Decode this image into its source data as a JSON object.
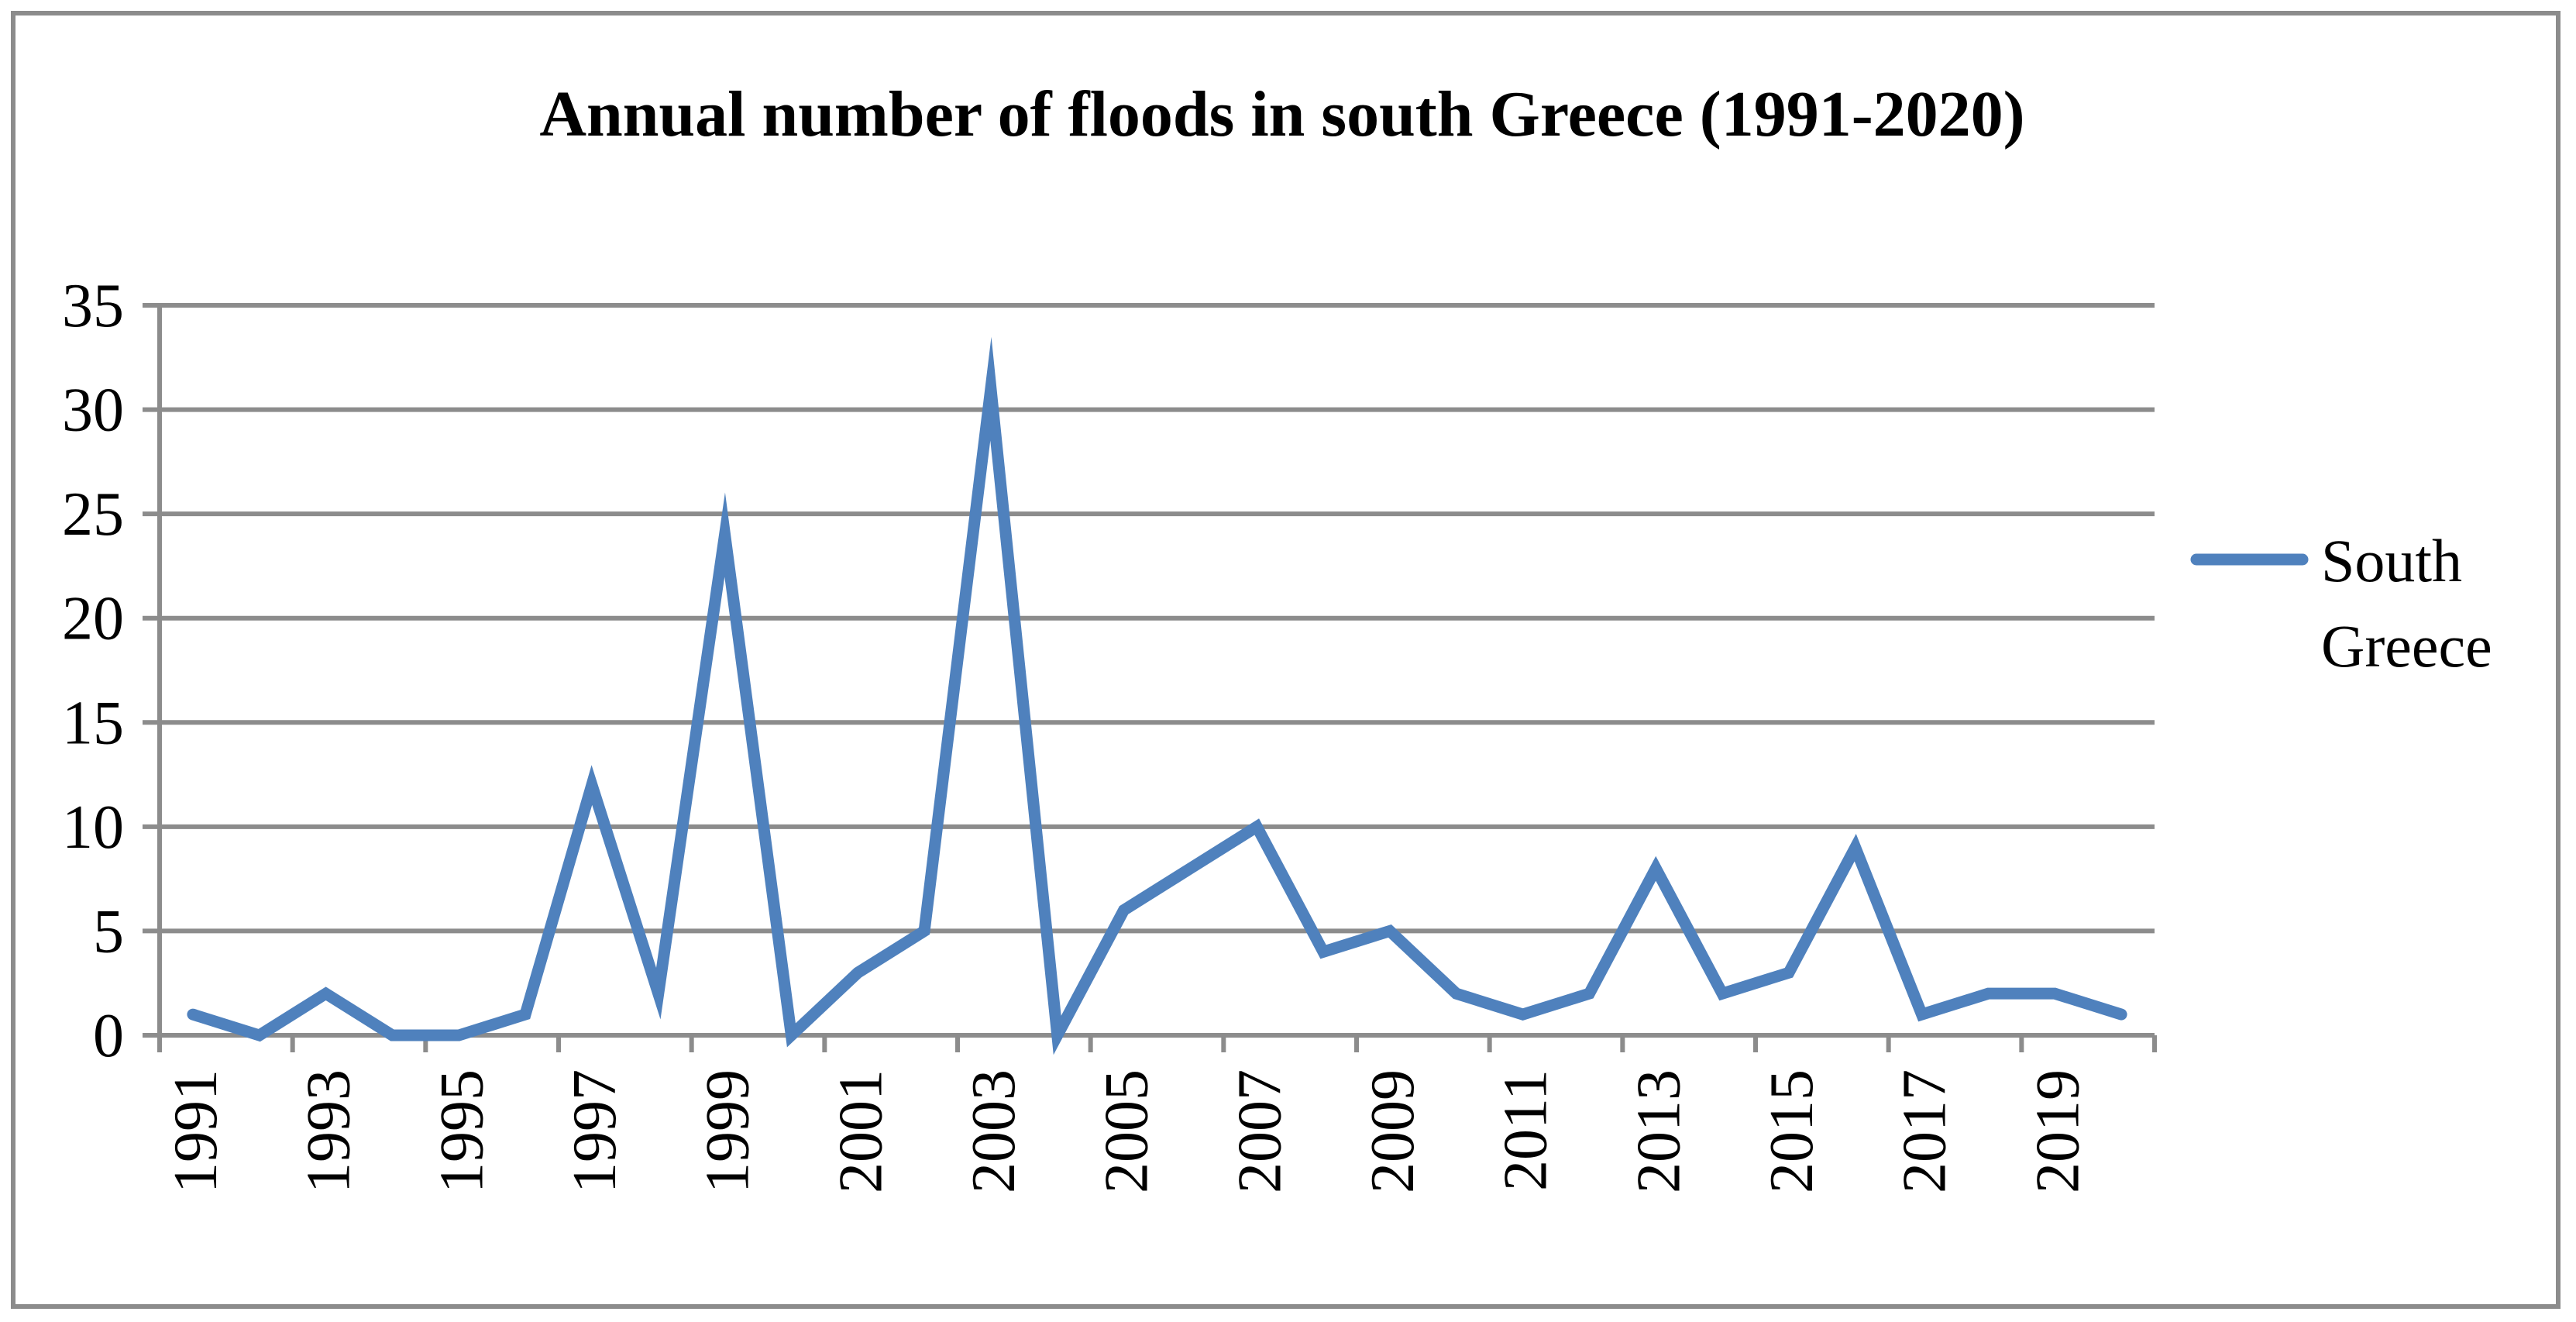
{
  "chart_data": {
    "type": "line",
    "title": "Annual number of floods in south Greece (1991-2020)",
    "xlabel": "",
    "ylabel": "",
    "x": [
      1991,
      1992,
      1993,
      1994,
      1995,
      1996,
      1997,
      1998,
      1999,
      2000,
      2001,
      2002,
      2003,
      2004,
      2005,
      2006,
      2007,
      2008,
      2009,
      2010,
      2011,
      2012,
      2013,
      2014,
      2015,
      2016,
      2017,
      2018,
      2019,
      2020
    ],
    "x_tick_labels": [
      "1991",
      "1993",
      "1995",
      "1997",
      "1999",
      "2001",
      "2003",
      "2005",
      "2007",
      "2009",
      "2011",
      "2013",
      "2015",
      "2017",
      "2019"
    ],
    "y_tick_labels": [
      "0",
      "5",
      "10",
      "15",
      "20",
      "25",
      "30",
      "35"
    ],
    "ylim": [
      0,
      35
    ],
    "grid": true,
    "series": [
      {
        "name": "South Greece",
        "legend_lines": [
          "South",
          "Greece"
        ],
        "color": "#4F81BD",
        "values": [
          1,
          0,
          2,
          0,
          0,
          1,
          12,
          2,
          24,
          0,
          3,
          5,
          31,
          0,
          6,
          8,
          10,
          4,
          5,
          2,
          1,
          2,
          8,
          2,
          3,
          9,
          1,
          2,
          2,
          1
        ]
      }
    ],
    "legend_position": "right"
  }
}
